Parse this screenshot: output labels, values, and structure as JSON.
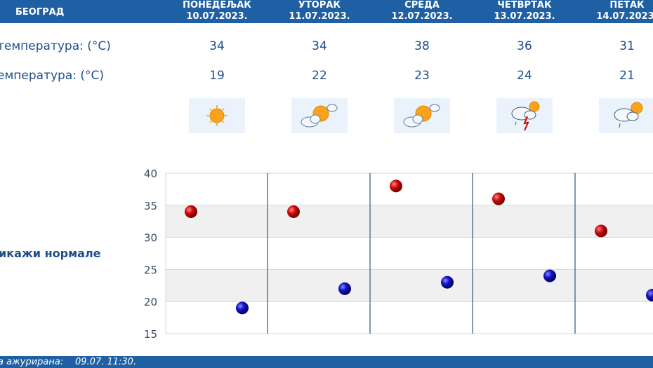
{
  "header": {
    "city": "БЕОГРАД"
  },
  "days": [
    {
      "name": "ПОНЕДЕЉАК",
      "date": "10.07.2023.",
      "max": "34",
      "min": "19",
      "icon": "sunny-icon"
    },
    {
      "name": "УТОРАК",
      "date": "11.07.2023.",
      "max": "34",
      "min": "22",
      "icon": "partly-cloudy-icon"
    },
    {
      "name": "СРЕДА",
      "date": "12.07.2023.",
      "max": "38",
      "min": "23",
      "icon": "partly-cloudy-icon"
    },
    {
      "name": "ЧЕТВРТАК",
      "date": "13.07.2023.",
      "max": "36",
      "min": "24",
      "icon": "thunderstorm-icon"
    },
    {
      "name": "ПЕТАК",
      "date": "14.07.2023.",
      "max": "31",
      "min": "21",
      "icon": "rain-shower-icon"
    }
  ],
  "labels": {
    "max_temp": "температура: (°C)",
    "min_temp": "емпература: (°C)",
    "weather": ":",
    "show_normals": "икажи нормале"
  },
  "footer": {
    "updated_label": "а ажурирана:",
    "updated_value": "09.07. 11:30."
  },
  "colors": {
    "header_bg": "#1f5fa3",
    "max_dot": "#c0000a",
    "min_dot": "#1010b0",
    "text": "#1f4e8c"
  },
  "chart_data": {
    "type": "scatter",
    "categories": [
      "10.07.2023.",
      "11.07.2023.",
      "12.07.2023.",
      "13.07.2023.",
      "14.07.2023."
    ],
    "series": [
      {
        "values": [
          34,
          34,
          38,
          36,
          31
        ],
        "color": "#c0000a"
      },
      {
        "values": [
          19,
          22,
          23,
          24,
          21
        ],
        "color": "#1010b0"
      }
    ],
    "ylim": [
      15,
      40
    ],
    "yticks": [
      "15",
      "20",
      "25",
      "30",
      "35",
      "40"
    ],
    "grid": true
  }
}
